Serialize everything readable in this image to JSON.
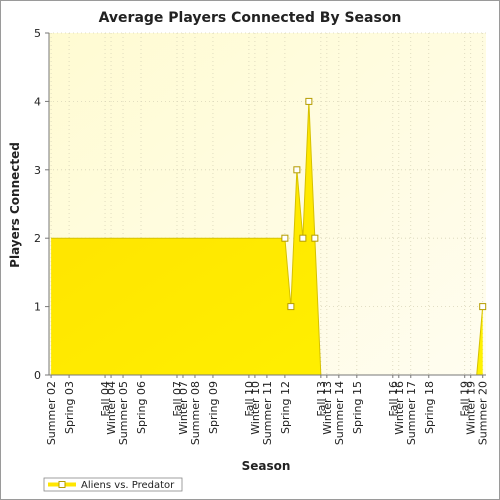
{
  "chart_data": {
    "type": "area",
    "title": "Average Players Connected By Season",
    "xlabel": "Season",
    "ylabel": "Players Connected",
    "ylim": [
      0,
      5
    ],
    "yticks": [
      "0",
      "1",
      "2",
      "3",
      "4",
      "5"
    ],
    "grid": true,
    "legend_position": "bottom-left",
    "x_tick_labels": [
      "Summer 02",
      "Spring 03",
      "Winter 04",
      "Fall 04",
      "Summer 05",
      "Spring 06",
      "Winter 07",
      "Fall 07",
      "Summer 08",
      "Spring 09",
      "Winter 10",
      "Fall 10",
      "Summer 11",
      "Spring 12",
      "Winter 13",
      "Fall 13",
      "Summer 14",
      "Spring 15",
      "Winter 16",
      "Fall 16",
      "Summer 17",
      "Spring 18",
      "Winter 19",
      "Fall 19",
      "Summer 20"
    ],
    "series": [
      {
        "name": "Aliens vs. Predator",
        "color": "#ffe600",
        "points": [
          {
            "x": "Summer 02",
            "y": 2
          },
          {
            "x": "Spring 12",
            "y": 2,
            "marker": true
          },
          {
            "x": "Summer 12",
            "y": 1,
            "marker": true
          },
          {
            "x": "Fall 12",
            "y": 3,
            "marker": true
          },
          {
            "x": "Winter 12",
            "y": 2,
            "marker": true
          },
          {
            "x": "Spring 13",
            "y": 4,
            "marker": true
          },
          {
            "x": "Summer 13",
            "y": 2,
            "marker": true
          },
          {
            "x": "Fall 13",
            "y": 0
          },
          {
            "x": "Spring 20",
            "y": 0
          },
          {
            "x": "Summer 20",
            "y": 1,
            "marker": true
          }
        ]
      }
    ]
  }
}
